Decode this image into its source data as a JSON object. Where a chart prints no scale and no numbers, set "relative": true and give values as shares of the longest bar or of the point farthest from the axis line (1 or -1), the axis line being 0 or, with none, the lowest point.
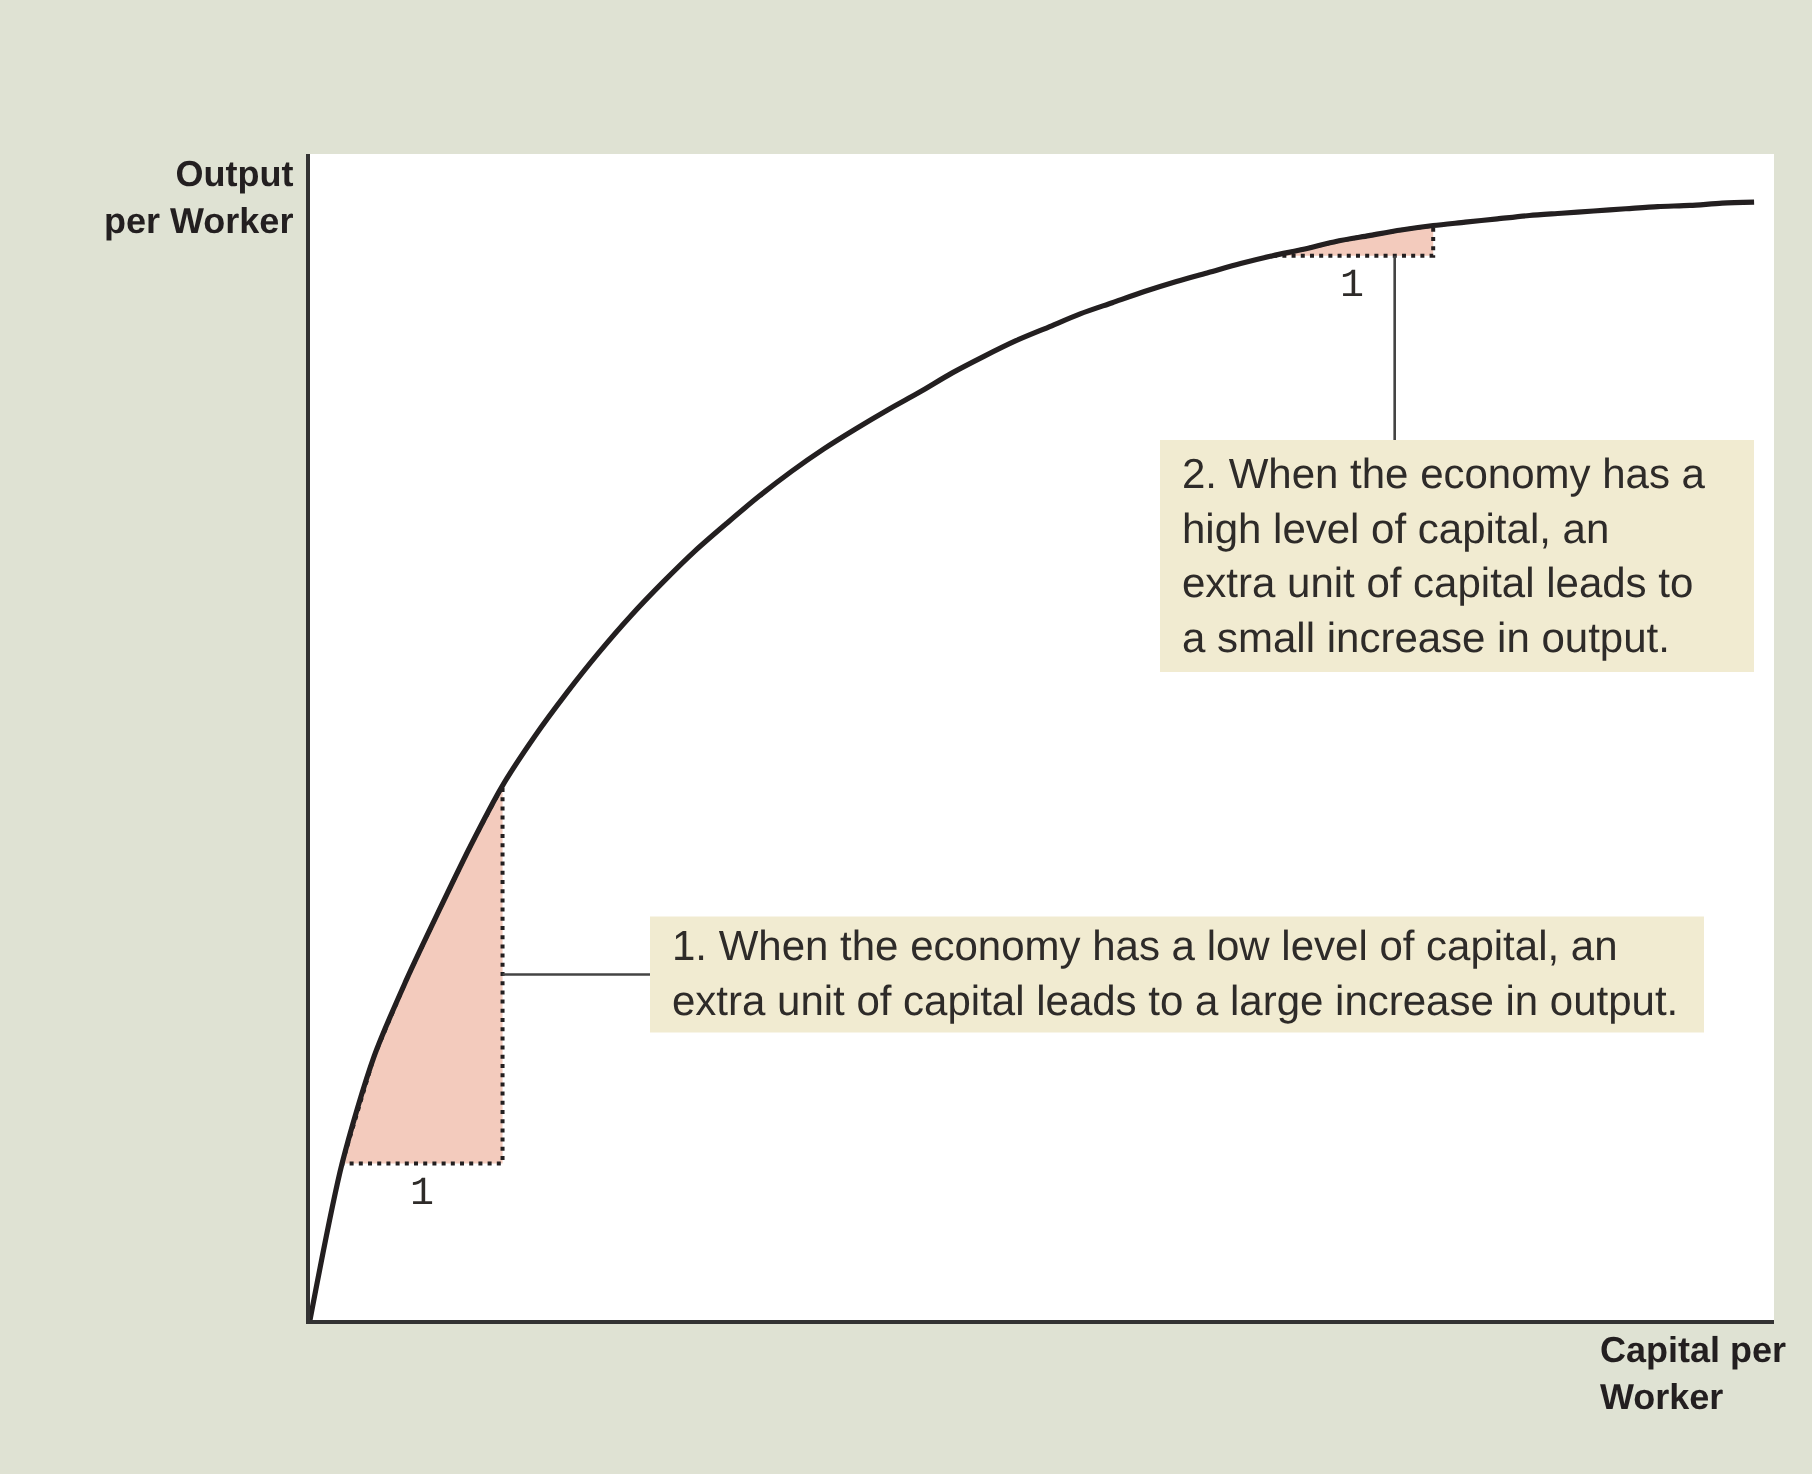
{
  "chart_data": {
    "type": "line",
    "xlabel": "Capital per\nWorker",
    "ylabel": "Output\nper Worker",
    "relative": true,
    "categories": [
      null,
      null,
      null,
      null,
      null,
      null,
      null,
      null,
      null,
      null,
      null,
      null,
      null,
      null,
      null,
      null,
      null,
      null,
      null,
      null,
      null,
      null,
      null,
      null,
      null,
      null,
      null,
      null,
      null,
      null,
      null,
      null,
      null,
      null,
      null,
      null,
      null,
      null,
      null,
      null,
      null,
      null,
      null,
      null,
      null,
      null
    ],
    "series": [
      {
        "color": "#231f20",
        "line_style": "solid",
        "values": [
          0,
          0.14,
          0.236,
          0.304,
          0.365,
          0.424,
          0.478,
          0.522,
          0.561,
          0.597,
          0.63,
          0.66,
          0.688,
          0.713,
          0.737,
          0.759,
          0.779,
          0.797,
          0.814,
          0.83,
          0.847,
          0.862,
          0.876,
          0.888,
          0.9,
          0.91,
          0.92,
          0.929,
          0.937,
          0.945,
          0.952,
          0.958,
          0.965,
          0.97,
          0.975,
          0.979,
          0.982,
          0.985,
          0.988,
          0.99,
          0.992,
          0.994,
          0.996,
          0.997,
          0.999,
          1
        ],
        "lower": [
          null,
          0.14,
          0.14,
          0.14,
          0.14,
          0.14,
          0.14,
          null,
          null,
          null,
          null,
          null,
          null,
          null,
          null,
          null,
          null,
          null,
          null,
          null,
          null,
          null,
          null,
          null,
          null,
          null,
          null,
          null,
          null,
          null,
          0.952,
          0.952,
          0.952,
          0.952,
          0.952,
          0.952,
          null,
          null,
          null,
          null,
          null,
          null,
          null,
          null,
          null,
          null
        ],
        "upper": [
          null,
          0.14,
          0.236,
          0.304,
          0.365,
          0.424,
          0.478,
          null,
          null,
          null,
          null,
          null,
          null,
          null,
          null,
          null,
          null,
          null,
          null,
          null,
          null,
          null,
          null,
          null,
          null,
          null,
          null,
          null,
          null,
          null,
          0.952,
          0.958,
          0.965,
          0.97,
          0.975,
          0.979,
          null,
          null,
          null,
          null,
          null,
          null,
          null,
          null,
          null,
          null
        ]
      }
    ],
    "annotations": [
      "1",
      "1",
      "1. When the economy has a low level of capital, an\nextra unit of capital leads to a large increase in output.",
      "2. When the economy has a\nhigh level of capital, an\nextra unit of capital leads to\na small increase in output."
    ]
  }
}
